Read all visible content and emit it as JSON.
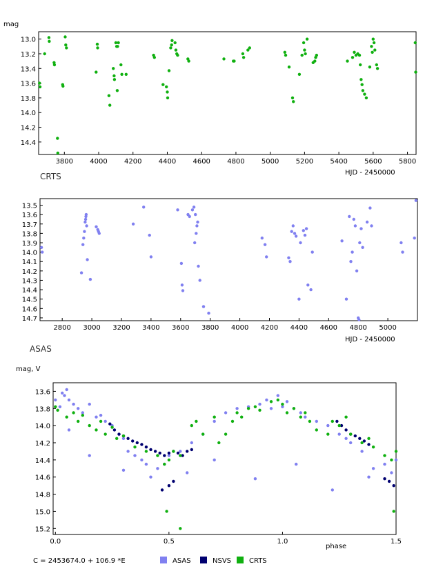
{
  "colors": {
    "asas": "#8080f0",
    "nsvs": "#000070",
    "crts": "#10b010",
    "frame": "#000000"
  },
  "chart_data": [
    {
      "id": "crts",
      "type": "scatter",
      "title": "CRTS",
      "xlabel": "HJD - 2450000",
      "ylabel": "mag",
      "xlim": [
        3650,
        5850
      ],
      "ylim": [
        12.9,
        14.57
      ],
      "y_inverted": true,
      "xticks": [
        3800,
        4000,
        4200,
        4400,
        4600,
        4800,
        5000,
        5200,
        5400,
        5600,
        5800
      ],
      "yticks": [
        13.0,
        13.2,
        13.4,
        13.6,
        13.8,
        14.0,
        14.2,
        14.4
      ],
      "ytick_labels": [
        "13.0",
        "13.2",
        "13.4",
        "13.6",
        "13.8",
        "14.0",
        "14.2",
        "14.4"
      ],
      "series": [
        {
          "name": "CRTS",
          "color": "#10b010",
          "x": [
            3655,
            3658,
            3685,
            3710,
            3712,
            3740,
            3742,
            3760,
            3762,
            3790,
            3792,
            3805,
            3808,
            3812,
            3985,
            3992,
            3994,
            4060,
            4065,
            4085,
            4090,
            4092,
            4100,
            4105,
            4108,
            4110,
            4115,
            4130,
            4135,
            4160,
            4320,
            4325,
            4375,
            4395,
            4400,
            4402,
            4410,
            4420,
            4425,
            4428,
            4445,
            4450,
            4455,
            4460,
            4520,
            4525,
            4730,
            4785,
            4790,
            4840,
            4845,
            4870,
            4880,
            5085,
            5090,
            5110,
            5130,
            5135,
            5170,
            5185,
            5195,
            5200,
            5205,
            5215,
            5250,
            5260,
            5265,
            5270,
            5450,
            5480,
            5490,
            5500,
            5510,
            5520,
            5525,
            5530,
            5535,
            5540,
            5550,
            5560,
            5580,
            5590,
            5595,
            5600,
            5605,
            5610,
            5620,
            5625,
            5845,
            5848
          ],
          "y": [
            13.6,
            13.65,
            13.2,
            12.98,
            13.03,
            13.32,
            13.35,
            14.35,
            14.55,
            13.62,
            13.64,
            12.97,
            13.08,
            13.12,
            13.45,
            13.07,
            13.12,
            13.77,
            13.9,
            13.4,
            13.5,
            13.55,
            13.05,
            13.1,
            13.7,
            13.1,
            13.05,
            13.35,
            13.48,
            13.48,
            13.22,
            13.25,
            13.62,
            13.65,
            13.72,
            13.8,
            13.43,
            13.12,
            13.08,
            13.02,
            13.05,
            13.15,
            13.2,
            13.22,
            13.27,
            13.3,
            13.27,
            13.3,
            13.3,
            13.2,
            13.25,
            13.15,
            13.12,
            13.18,
            13.22,
            13.38,
            13.8,
            13.85,
            13.48,
            13.22,
            13.05,
            13.15,
            13.2,
            13.0,
            13.32,
            13.3,
            13.25,
            13.22,
            13.3,
            13.25,
            13.18,
            13.22,
            13.2,
            13.22,
            13.35,
            13.55,
            13.62,
            13.7,
            13.75,
            13.8,
            13.38,
            13.1,
            13.18,
            13.0,
            13.05,
            13.15,
            13.35,
            13.4,
            13.05,
            13.45
          ]
        }
      ]
    },
    {
      "id": "asas",
      "type": "scatter",
      "title": "ASAS",
      "xlabel": "HJD - 2450000",
      "ylabel": "",
      "xlim": [
        2650,
        5200
      ],
      "ylim": [
        13.43,
        14.73
      ],
      "y_inverted": true,
      "xticks": [
        2800,
        3000,
        3200,
        3400,
        3600,
        3800,
        4000,
        4200,
        4400,
        4600,
        4800,
        5000
      ],
      "yticks": [
        13.5,
        13.6,
        13.7,
        13.8,
        13.9,
        14.0,
        14.1,
        14.2,
        14.3,
        14.4,
        14.5,
        14.6,
        14.7
      ],
      "ytick_labels": [
        "13.5",
        "13.6",
        "13.7",
        "13.8",
        "13.9",
        "14.0",
        "14.1",
        "14.2",
        "14.3",
        "14.4",
        "14.5",
        "14.6",
        "14.7"
      ],
      "series": [
        {
          "name": "ASAS",
          "color": "#8080f0",
          "x": [
            2660,
            2665,
            2930,
            2940,
            2945,
            2950,
            2955,
            2958,
            2960,
            2962,
            2965,
            2970,
            2990,
            3030,
            3040,
            3045,
            3050,
            3280,
            3350,
            3390,
            3400,
            3580,
            3605,
            3610,
            3615,
            3650,
            3660,
            3680,
            3690,
            3695,
            3700,
            3705,
            3710,
            3715,
            3720,
            3730,
            3755,
            3790,
            4150,
            4170,
            4180,
            4330,
            4340,
            4350,
            4360,
            4370,
            4380,
            4400,
            4410,
            4430,
            4440,
            4450,
            4460,
            4480,
            4490,
            4690,
            4720,
            4740,
            4750,
            4760,
            4770,
            4780,
            4790,
            4800,
            4805,
            4810,
            4820,
            4830,
            4860,
            4880,
            4890,
            5090,
            5100,
            5180,
            5190
          ],
          "y": [
            13.95,
            14.0,
            14.22,
            13.92,
            13.85,
            13.78,
            13.68,
            13.65,
            13.62,
            13.6,
            13.72,
            14.08,
            14.29,
            13.73,
            13.76,
            13.78,
            13.8,
            13.7,
            13.52,
            13.82,
            14.05,
            13.55,
            14.12,
            14.35,
            14.41,
            13.6,
            13.62,
            13.55,
            13.52,
            13.9,
            13.6,
            13.8,
            13.72,
            13.68,
            14.15,
            14.3,
            14.58,
            14.65,
            13.85,
            13.92,
            14.05,
            14.06,
            14.1,
            13.78,
            13.72,
            13.8,
            13.83,
            14.5,
            13.9,
            13.77,
            13.82,
            13.75,
            14.35,
            14.4,
            14.0,
            13.88,
            14.5,
            13.62,
            14.1,
            14.0,
            13.65,
            13.72,
            14.2,
            14.7,
            14.72,
            13.9,
            13.75,
            13.95,
            13.68,
            13.53,
            13.72,
            13.9,
            14.0,
            13.85,
            13.45
          ]
        }
      ]
    },
    {
      "id": "phase",
      "type": "scatter",
      "title": "",
      "xlabel": "phase",
      "ylabel": "mag, V",
      "xlim": [
        -0.01,
        1.5
      ],
      "ylim": [
        13.5,
        15.27
      ],
      "y_inverted": true,
      "xticks": [
        0.0,
        0.5,
        1.0,
        1.5
      ],
      "xtick_labels": [
        "0.0",
        "0.5",
        "1.0",
        "1.5"
      ],
      "yticks": [
        13.6,
        13.8,
        14.0,
        14.2,
        14.4,
        14.6,
        14.8,
        15.0,
        15.2
      ],
      "ytick_labels": [
        "13.6",
        "13.8",
        "14.0",
        "14.2",
        "14.4",
        "14.6",
        "14.8",
        "15.0",
        "15.2"
      ],
      "ephemeris": "C = 2453674.0 + 106.9 *E",
      "legend": [
        {
          "name": "ASAS",
          "color": "#8080f0"
        },
        {
          "name": "NSVS",
          "color": "#000070"
        },
        {
          "name": "CRTS",
          "color": "#10b010"
        }
      ],
      "legend_position": "bottom",
      "series": [
        {
          "name": "ASAS",
          "color": "#8080f0",
          "x": [
            0.0,
            0.02,
            0.03,
            0.04,
            0.05,
            0.06,
            0.08,
            0.1,
            0.12,
            0.15,
            0.18,
            0.2,
            0.22,
            0.25,
            0.28,
            0.3,
            0.32,
            0.35,
            0.38,
            0.4,
            0.45,
            0.48,
            0.5,
            0.55,
            0.6,
            0.65,
            0.7,
            0.75,
            0.8,
            0.85,
            0.9,
            0.93,
            0.95,
            0.98,
            1.0,
            1.02,
            1.05,
            1.08,
            1.1,
            1.15,
            1.2,
            1.25,
            1.28,
            1.3,
            1.35,
            1.4,
            1.45,
            1.48,
            1.5,
            0.06,
            0.15,
            0.3,
            0.42,
            0.58,
            0.7,
            0.88,
            1.06,
            1.22,
            1.38
          ],
          "y": [
            13.7,
            13.78,
            13.62,
            13.65,
            13.58,
            13.7,
            13.75,
            13.8,
            13.85,
            13.75,
            13.9,
            13.88,
            13.95,
            14.0,
            14.1,
            14.15,
            14.3,
            14.35,
            14.4,
            14.45,
            14.5,
            14.45,
            14.35,
            14.3,
            14.2,
            14.1,
            13.95,
            13.85,
            13.8,
            13.78,
            13.75,
            13.7,
            13.8,
            13.65,
            13.78,
            13.72,
            13.8,
            13.85,
            13.9,
            13.95,
            14.0,
            14.1,
            14.15,
            14.2,
            14.3,
            14.5,
            14.45,
            14.55,
            14.4,
            14.05,
            14.35,
            14.52,
            14.6,
            14.55,
            14.4,
            14.62,
            14.45,
            14.75,
            14.6
          ]
        },
        {
          "name": "NSVS",
          "color": "#000070",
          "x": [
            0.24,
            0.26,
            0.28,
            0.3,
            0.32,
            0.34,
            0.36,
            0.38,
            0.4,
            0.42,
            0.44,
            0.46,
            0.48,
            0.5,
            0.52,
            0.54,
            0.56,
            0.58,
            0.6,
            0.47,
            0.5,
            0.52,
            1.24,
            1.26,
            1.28,
            1.3,
            1.32,
            1.34,
            1.36,
            1.38,
            1.45,
            1.47,
            1.49
          ],
          "y": [
            13.98,
            14.05,
            14.1,
            14.12,
            14.15,
            14.18,
            14.2,
            14.22,
            14.25,
            14.28,
            14.3,
            14.32,
            14.35,
            14.32,
            14.3,
            14.32,
            14.35,
            14.3,
            14.28,
            14.75,
            14.7,
            14.65,
            13.95,
            14.0,
            14.05,
            14.1,
            14.12,
            14.15,
            14.18,
            14.22,
            14.62,
            14.65,
            14.7
          ]
        },
        {
          "name": "CRTS",
          "color": "#10b010",
          "x": [
            0.0,
            0.01,
            0.05,
            0.08,
            0.1,
            0.12,
            0.15,
            0.18,
            0.2,
            0.22,
            0.25,
            0.27,
            0.3,
            0.35,
            0.4,
            0.45,
            0.48,
            0.5,
            0.52,
            0.55,
            0.6,
            0.62,
            0.65,
            0.7,
            0.72,
            0.75,
            0.78,
            0.8,
            0.82,
            0.85,
            0.88,
            0.9,
            0.95,
            0.98,
            1.0,
            1.02,
            1.05,
            1.08,
            1.1,
            1.12,
            1.15,
            1.2,
            1.22,
            1.25,
            1.28,
            1.3,
            1.35,
            1.38,
            1.4,
            1.45,
            1.48,
            1.5,
            0.49,
            0.55,
            1.49
          ],
          "y": [
            13.78,
            13.82,
            13.9,
            13.85,
            13.95,
            13.88,
            14.0,
            14.05,
            13.95,
            14.1,
            14.02,
            14.15,
            14.12,
            14.25,
            14.3,
            14.35,
            14.45,
            14.4,
            14.3,
            14.35,
            14.0,
            13.95,
            14.1,
            13.9,
            14.2,
            14.1,
            13.95,
            13.85,
            13.9,
            13.8,
            13.78,
            13.82,
            13.72,
            13.7,
            13.75,
            13.85,
            13.8,
            13.9,
            13.85,
            13.95,
            14.05,
            14.1,
            13.95,
            14.0,
            13.9,
            14.1,
            14.2,
            14.15,
            14.25,
            14.35,
            14.4,
            14.3,
            15.0,
            15.2,
            15.0
          ]
        }
      ]
    }
  ]
}
